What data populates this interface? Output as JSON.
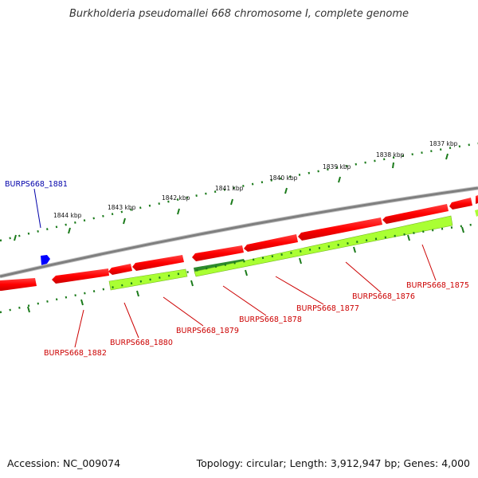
{
  "title": "Burkholderia pseudomallei 668 chromosome I, complete genome",
  "footer": {
    "accession": "Accession: NC_009074",
    "summary": "Topology: circular; Length: 3,912,947 bp; Genes: 4,000"
  },
  "ticks": [
    "1837 kbp",
    "1838 kbp",
    "1839 kbp",
    "1840 kbp",
    "1841 kbp",
    "1842 kbp",
    "1843 kbp",
    "1844 kbp"
  ],
  "genes": {
    "forward": [
      "BURPS668_1881"
    ],
    "reverse": [
      "BURPS668_1875",
      "BURPS668_1876",
      "BURPS668_1877",
      "BURPS668_1878",
      "BURPS668_1879",
      "BURPS668_1880",
      "BURPS668_1882"
    ]
  },
  "colors": {
    "backbone": "#7f7f7f",
    "cds_reverse": "#ff0000",
    "cds_forward": "#0000ff",
    "gene_feature": "#aaff33",
    "gene_feature_dark": "#2d8a2d",
    "tick": "#1a7a1a",
    "label_reverse": "#cc0000",
    "label_forward": "#0000aa"
  }
}
